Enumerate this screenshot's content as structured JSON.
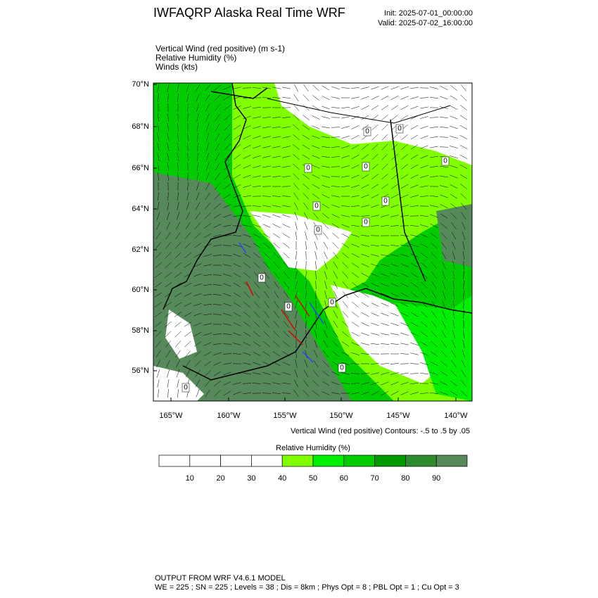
{
  "title": "IWFAQRP Alaska Real Time WRF",
  "init": "Init: 2025-07-01_00:00:00",
  "valid": "Valid: 2025-07-02_16:00:00",
  "fields": [
    "Vertical Wind (red positive)   (m s-1)",
    "Relative Humidity   (%)",
    "Winds   (kts)"
  ],
  "map": {
    "lat_labels": [
      "70°N",
      "68°N",
      "66°N",
      "64°N",
      "62°N",
      "60°N",
      "58°N",
      "56°N"
    ],
    "lon_labels": [
      "165°W",
      "160°W",
      "155°W",
      "150°W",
      "145°W",
      "140°W"
    ],
    "contour_labels": [
      "0",
      "0",
      "0",
      "0",
      "0",
      "0",
      "0",
      "0",
      "0",
      "0",
      "0",
      "0",
      "0",
      "0"
    ]
  },
  "contour_note": "Vertical Wind (red positive) Contours: -.5 to .5 by .05",
  "colorbar": {
    "title": "Relative Humidity  (%)",
    "colors": [
      "#ffffff",
      "#ffffff",
      "#ffffff",
      "#ffffff",
      "#80ff00",
      "#00ee00",
      "#00cc00",
      "#009900",
      "#2e8b2e",
      "#578a5a"
    ],
    "labels": [
      "10",
      "20",
      "30",
      "40",
      "50",
      "60",
      "70",
      "80",
      "90"
    ]
  },
  "footer": [
    "OUTPUT FROM WRF V4.6.1 MODEL",
    "WE = 225 ; SN = 225 ; Levels = 38 ; Dis = 8km ; Phys Opt = 8 ; PBL Opt = 1 ; Cu Opt = 3"
  ]
}
